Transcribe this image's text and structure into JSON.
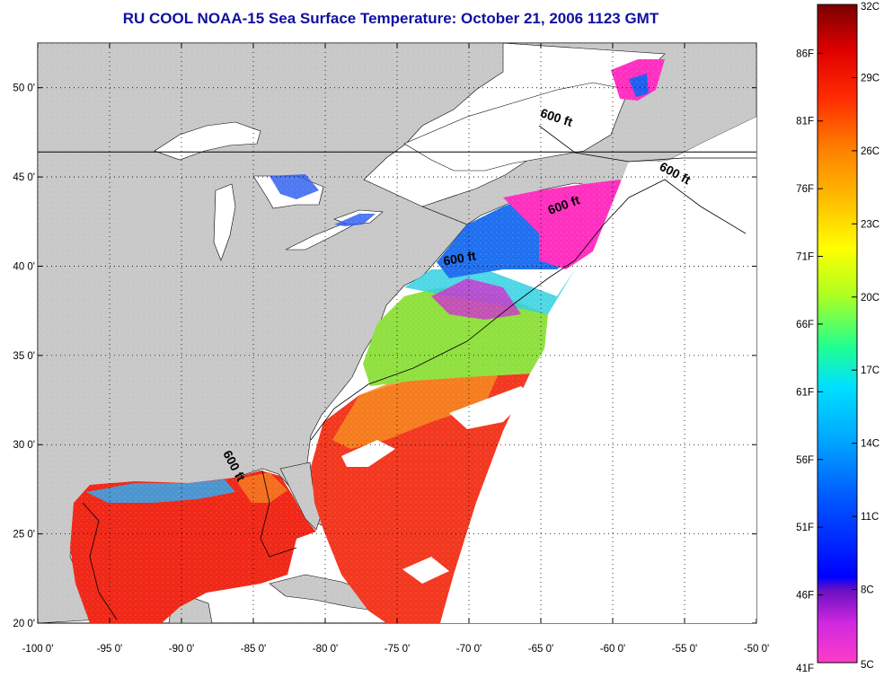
{
  "title": "RU COOL  NOAA-15  Sea Surface Temperature:  October 21, 2006 1123 GMT",
  "map": {
    "lon_range": [
      -100,
      -50
    ],
    "lat_range": [
      20,
      52.5
    ],
    "grid": true,
    "x_ticks": [
      {
        "value": -100,
        "label": "-100 0'"
      },
      {
        "value": -95,
        "label": "-95 0'"
      },
      {
        "value": -90,
        "label": "-90 0'"
      },
      {
        "value": -85,
        "label": "-85 0'"
      },
      {
        "value": -80,
        "label": "-80 0'"
      },
      {
        "value": -75,
        "label": "-75 0'"
      },
      {
        "value": -70,
        "label": "-70 0'"
      },
      {
        "value": -65,
        "label": "-65 0'"
      },
      {
        "value": -60,
        "label": "-60 0'"
      },
      {
        "value": -55,
        "label": "-55 0'"
      },
      {
        "value": -50,
        "label": "-50 0'"
      }
    ],
    "y_ticks": [
      {
        "value": 20,
        "label": "20 0'"
      },
      {
        "value": 25,
        "label": "25 0'"
      },
      {
        "value": 30,
        "label": "30 0'"
      },
      {
        "value": 35,
        "label": "35 0'"
      },
      {
        "value": 40,
        "label": "40 0'"
      },
      {
        "value": 45,
        "label": "45 0'"
      },
      {
        "value": 50,
        "label": "50 0'"
      }
    ],
    "contour_labels": [
      {
        "text": "600 ft",
        "lon": -64.0,
        "lat": 48.1,
        "angle": 18
      },
      {
        "text": "600 ft",
        "lon": -55.8,
        "lat": 45.0,
        "angle": 28
      },
      {
        "text": "600 ft",
        "lon": -63.3,
        "lat": 43.2,
        "angle": -20
      },
      {
        "text": "600 ft",
        "lon": -70.6,
        "lat": 40.2,
        "angle": -10
      },
      {
        "text": "600 ft",
        "lon": -86.6,
        "lat": 28.7,
        "angle": 62
      }
    ],
    "colors": {
      "land": "#c8c8c8",
      "no_data": "#ffffff",
      "warm_water": "#f01e10",
      "gulf_stream_orange": "#f47010",
      "cool_water_cyan": "#30d0e0",
      "cold_water_magenta": "#ff30c0"
    }
  },
  "colorbar": {
    "min_c": 5,
    "max_c": 32,
    "celsius_ticks": [
      "32C",
      "29C",
      "26C",
      "23C",
      "20C",
      "17C",
      "14C",
      "11C",
      "8C",
      "5C"
    ],
    "fahrenheit_ticks": [
      "86F",
      "81F",
      "76F",
      "71F",
      "66F",
      "61F",
      "56F",
      "51F",
      "46F",
      "41F"
    ]
  }
}
